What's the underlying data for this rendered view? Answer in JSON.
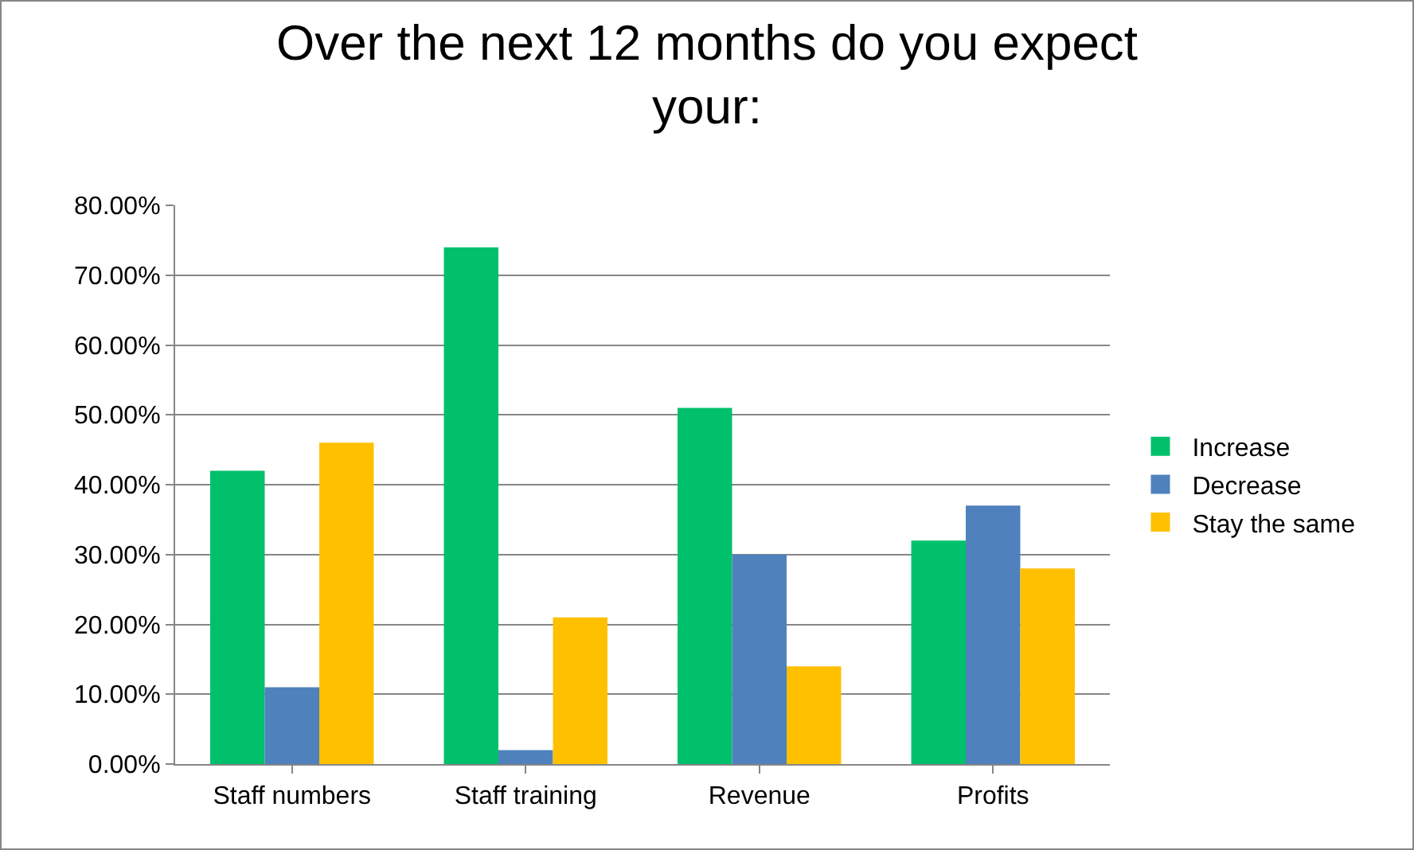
{
  "chart_data": {
    "type": "bar",
    "title": "Over the next 12 months do you expect your:",
    "categories": [
      "Staff numbers",
      "Staff training",
      "Revenue",
      "Profits"
    ],
    "series": [
      {
        "name": "Increase",
        "color": "#00c06b",
        "values": [
          42,
          74,
          51,
          32
        ]
      },
      {
        "name": "Decrease",
        "color": "#4f81bd",
        "values": [
          11,
          2,
          30,
          37
        ]
      },
      {
        "name": "Stay the same",
        "color": "#ffc000",
        "values": [
          46,
          21,
          14,
          28
        ]
      }
    ],
    "ylim": [
      0,
      80
    ],
    "yticks": [
      {
        "value": 0,
        "label": "0.00%"
      },
      {
        "value": 10,
        "label": "10.00%"
      },
      {
        "value": 20,
        "label": "20.00%"
      },
      {
        "value": 30,
        "label": "30.00%"
      },
      {
        "value": 40,
        "label": "40.00%"
      },
      {
        "value": 50,
        "label": "50.00%"
      },
      {
        "value": 60,
        "label": "60.00%"
      },
      {
        "value": 70,
        "label": "70.00%"
      },
      {
        "value": 80,
        "label": "80.00%"
      }
    ],
    "grid": "y",
    "legend": "right"
  }
}
